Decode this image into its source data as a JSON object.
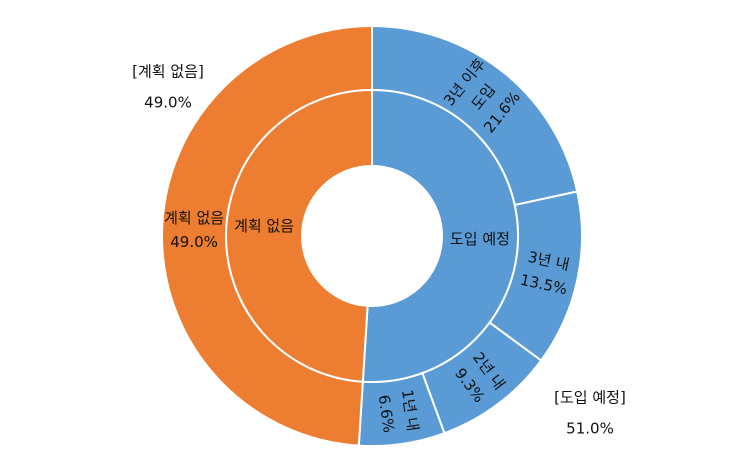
{
  "chart_data": {
    "type": "sunburst",
    "inner": {
      "categories": [
        "도입 예정",
        "계획 없음"
      ],
      "values": [
        51.0,
        49.0
      ],
      "value_labels": [
        "51.0%",
        "49.0%"
      ],
      "callout_labels": [
        "[도입 예정]",
        "[계획 없음]"
      ],
      "colors": [
        "#5b9bd5",
        "#ed7d31"
      ]
    },
    "outer": {
      "categories": [
        [
          "3년 이후",
          "도입"
        ],
        [
          "3년 내"
        ],
        [
          "2년 내"
        ],
        [
          "1년 내"
        ],
        [
          "계획 없음"
        ]
      ],
      "values": [
        21.6,
        13.5,
        9.3,
        6.6,
        49.0
      ],
      "value_labels": [
        "21.6%",
        "13.5%",
        "9.3%",
        "6.6%",
        "49.0%"
      ],
      "colors": [
        "#5b9bd5",
        "#5b9bd5",
        "#5b9bd5",
        "#5b9bd5",
        "#ed7d31"
      ]
    }
  }
}
